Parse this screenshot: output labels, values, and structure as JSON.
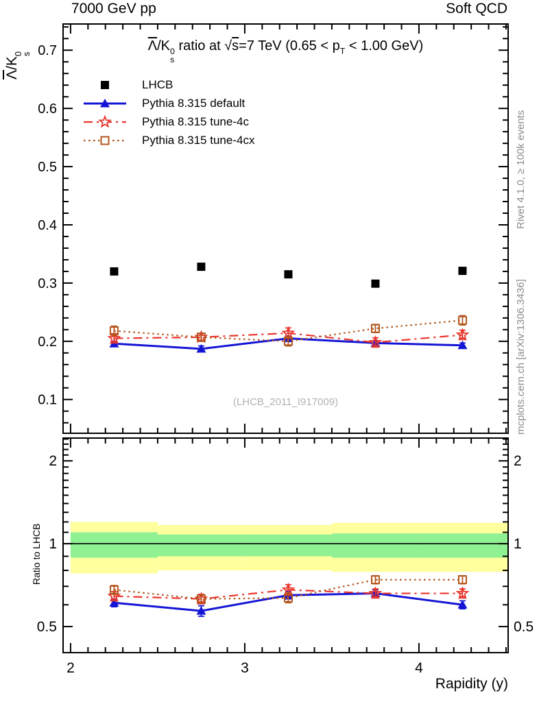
{
  "header": {
    "left": "7000 GeV pp",
    "right": "Soft QCD"
  },
  "title_parts": {
    "t1": "Λ",
    "t2": "/K",
    "sup": "0",
    "sub": "s",
    "t3": " ratio at ",
    "t4": "√",
    "t5": "s",
    "t6": "=7 TeV (0.65 < p",
    "t7": "T",
    "t8": " < 1.00 GeV)"
  },
  "y_label_parts": {
    "t1": "Λ",
    "t2": "/K",
    "sup": "0",
    "sub": "s"
  },
  "side_text_top": "Rivet 4.1.0, ≥ 100k events",
  "side_text_bottom": "mcplots.cern.ch [arXiv:1306.3436]",
  "watermark": "(LHCB_2011_I917009)",
  "ratio_label": "Ratio to LHCB",
  "chart_data": {
    "type": "line",
    "title": "Lambda-bar/K0s ratio at sqrt(s)=7 TeV (0.65 < pT < 1.00 GeV)",
    "xlabel": "Rapidity (y)",
    "x_range": [
      1.957,
      4.512
    ],
    "x_major_ticks": [
      2,
      3,
      4
    ],
    "x_major_tick_labels": [
      "2",
      "3",
      "4"
    ],
    "x_minor_step": 0.1,
    "x": [
      2.25,
      2.75,
      3.25,
      3.75,
      4.25
    ],
    "main_axis": {
      "y_range": [
        0.042,
        0.745
      ],
      "y_major_ticks": [
        0.1,
        0.2,
        0.3,
        0.4,
        0.5,
        0.6,
        0.7
      ],
      "y_tick_labels": [
        "0.1",
        "0.2",
        "0.3",
        "0.4",
        "0.5",
        "0.6",
        "0.7"
      ],
      "y_minor_step": 0.02,
      "grid": false
    },
    "ratio_axis": {
      "scale": "log",
      "y_range": [
        0.402,
        2.42
      ],
      "y_major_ticks": [
        0.5,
        1,
        2
      ],
      "y_tick_labels": [
        "0.5",
        "1",
        "2"
      ],
      "y_minor_ticks": [
        0.6,
        0.7,
        0.8,
        0.9,
        1.1,
        1.2,
        1.3,
        1.4,
        1.5,
        1.6,
        1.7,
        1.8,
        1.9,
        2.1,
        2.2,
        2.3,
        2.4
      ],
      "reference_line": 1
    },
    "bands": {
      "edges": [
        2.0,
        2.5,
        3.0,
        3.5,
        4.0,
        4.512
      ],
      "yellow": {
        "color": "#ffff9e",
        "lo": [
          0.78,
          0.8,
          0.8,
          0.79,
          0.79
        ],
        "hi": [
          1.2,
          1.17,
          1.17,
          1.19,
          1.19
        ]
      },
      "green": {
        "color": "#90f193",
        "lo": [
          0.89,
          0.9,
          0.9,
          0.89,
          0.89
        ],
        "hi": [
          1.1,
          1.08,
          1.08,
          1.09,
          1.09
        ]
      }
    },
    "series": [
      {
        "name": "LHCB",
        "color": "#000000",
        "marker": "filled-square",
        "line": "none",
        "values": [
          0.32,
          0.328,
          0.315,
          0.299,
          0.321
        ]
      },
      {
        "name": "Pythia 8.315 default",
        "color": "#1515d6",
        "marker": "filled-triangle",
        "line": "solid",
        "values": [
          0.196,
          0.187,
          0.205,
          0.197,
          0.193
        ],
        "errors": [
          0.004,
          0.005,
          0.004,
          0.004,
          0.004
        ],
        "ratio": [
          0.61,
          0.57,
          0.65,
          0.66,
          0.6
        ],
        "ratio_errors": [
          0.02,
          0.025,
          0.02,
          0.02,
          0.02
        ]
      },
      {
        "name": "Pythia 8.315 tune-4c",
        "color": "#e8352c",
        "marker": "open-star",
        "line": "dashdot",
        "values": [
          0.205,
          0.207,
          0.214,
          0.198,
          0.211
        ],
        "errors": [
          0.008,
          0.007,
          0.009,
          0.008,
          0.008
        ],
        "ratio": [
          0.645,
          0.63,
          0.68,
          0.66,
          0.66
        ],
        "ratio_errors": [
          0.025,
          0.025,
          0.03,
          0.025,
          0.025
        ]
      },
      {
        "name": "Pythia 8.315 tune-4cx",
        "color": "#b4561e",
        "marker": "open-square",
        "line": "dotted",
        "values": [
          0.218,
          0.207,
          0.2,
          0.222,
          0.236
        ],
        "errors": [
          0.008,
          0.007,
          0.008,
          0.007,
          0.008
        ],
        "ratio": [
          0.68,
          0.63,
          0.635,
          0.74,
          0.74
        ],
        "ratio_errors": [
          0.025,
          0.02,
          0.025,
          0.025,
          0.025
        ]
      }
    ]
  }
}
